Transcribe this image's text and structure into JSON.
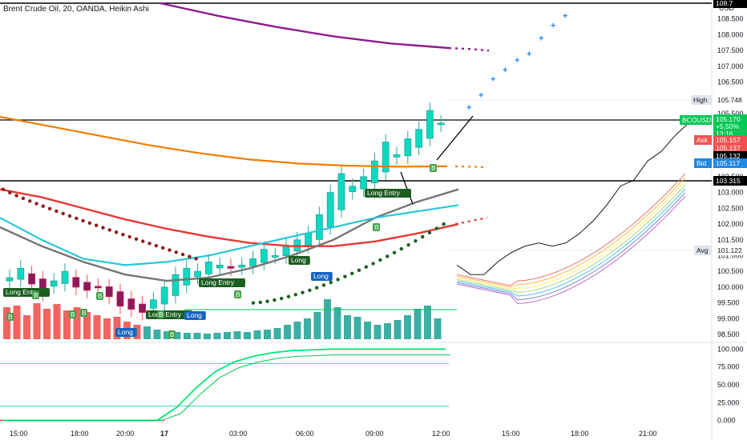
{
  "header": {
    "title": "Brent Crude Oil, 20, OANDA, Heikin Ashi",
    "currency": "USD"
  },
  "chart_data": [
    {
      "type": "candlestick",
      "title": "Brent Crude Oil, 20, OANDA, Heikin Ashi",
      "ylim": [
        98.3,
        109.0
      ],
      "y_ticks": [
        98.5,
        99.0,
        99.5,
        100.0,
        100.5,
        101.0,
        101.5,
        102.0,
        102.5,
        103.0,
        103.5,
        104.0,
        104.5,
        105.0,
        105.5,
        106.0,
        106.5,
        107.0,
        107.5,
        108.0,
        108.5
      ],
      "y_tick_labels": [
        "98.500",
        "99.000",
        "99.500",
        "100.000",
        "100.500",
        "101.000",
        "101.500",
        "102.000",
        "102.500",
        "103.000",
        "103.500",
        "104.000",
        "104.500",
        "105.000",
        "105.500",
        "106.000",
        "106.500",
        "107.000",
        "107.500",
        "108.000",
        "108.500"
      ],
      "x_ticks": [
        "15:00",
        "18:00",
        "20:00",
        "17",
        "03:00",
        "06:00",
        "09:00",
        "12:00",
        "15:00",
        "18:00",
        "21:00"
      ],
      "price_close": [
        100.3,
        100.6,
        100.1,
        99.8,
        100.2,
        100.5,
        100.0,
        99.9,
        100.0,
        99.7,
        99.4,
        99.3,
        99.2,
        99.6,
        100.0,
        100.4,
        100.6,
        100.5,
        100.8,
        100.7,
        100.6,
        100.7,
        100.9,
        101.2,
        101.0,
        101.3,
        101.5,
        101.7,
        102.3,
        103.0,
        103.6,
        103.2,
        103.5,
        104.0,
        104.6,
        104.2,
        104.7,
        105.0,
        105.6,
        105.2
      ],
      "projection": [
        105.6,
        106.0,
        106.5,
        106.8,
        107.1,
        107.3,
        107.8,
        108.2,
        108.5
      ],
      "ma_orange": [
        105.4,
        105.1,
        104.8,
        104.5,
        104.25,
        104.05,
        103.92,
        103.85,
        103.82,
        103.83
      ],
      "ma_purple": [
        109.0,
        108.6,
        108.25,
        107.95,
        107.72,
        107.58
      ],
      "ma_red": [
        103.1,
        102.85,
        102.5,
        102.15,
        101.85,
        101.6,
        101.4,
        101.3,
        101.3,
        101.45,
        101.7,
        102.0
      ],
      "levels": [
        {
          "label": "High",
          "value": "105.748"
        },
        {
          "label": "BCOUSD",
          "value": "105.170",
          "change": "+5.50%",
          "countdown": "13:16"
        },
        {
          "label": "Ask",
          "value": "105.157"
        },
        {
          "label": "",
          "value": "105.137"
        },
        {
          "label": "",
          "value": "105.132"
        },
        {
          "label": "Bid",
          "value": "105.117"
        },
        {
          "label": "",
          "value": "103.315"
        },
        {
          "label": "Avg",
          "value": "101.122"
        },
        {
          "label": "",
          "value": "108.7"
        }
      ],
      "signals": [
        "Long Entry",
        "Long",
        "Long Entry",
        "Long",
        "Long",
        "Long Entry",
        "Long",
        "Long Entry",
        "Long Entry"
      ]
    },
    {
      "type": "line",
      "ylim": [
        -5,
        105
      ],
      "y_ticks": [
        0,
        25,
        50,
        75,
        100
      ],
      "y_tick_labels": [
        "0.000",
        "25.000",
        "50.000",
        "75.000",
        "100.000"
      ],
      "series": [
        {
          "values": [
            0,
            0,
            0,
            0,
            0,
            0,
            0,
            0,
            0,
            18,
            45,
            68,
            82,
            90,
            95,
            98,
            99,
            100,
            100,
            100,
            100,
            100,
            100,
            100
          ]
        }
      ]
    }
  ],
  "colors": {
    "up": "#26a69a",
    "down": "#ef5350",
    "orange": "#f57c00",
    "purple": "#8e1a8e",
    "red_ma": "#e53935",
    "green_dots": "#1b5e20",
    "cyan": "#26c6da",
    "blue_cross": "#1e88e5"
  }
}
